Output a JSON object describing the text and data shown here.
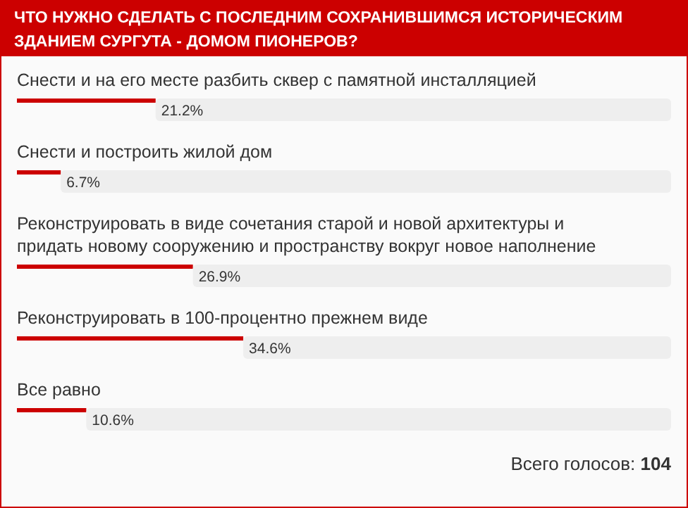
{
  "chart_data": {
    "type": "bar",
    "orientation": "horizontal",
    "stacked": true,
    "title": "ЧТО НУЖНО СДЕЛАТЬ С ПОСЛЕДНИМ СОХРАНИВШИМСЯ ИСТОРИЧЕСКИМ ЗДАНИЕМ СУРГУТА - ДОМОМ ПИОНЕРОВ?",
    "categories": [
      "Снести и на его месте разбить сквер с памятной инсталляцией",
      "Снести и построить жилой дом",
      "Реконструировать в виде сочетания старой и новой архитектуры и придать новому сооружению и пространству вокруг новое наполнение",
      "Реконструировать в 100-процентно прежнем виде",
      "Все равно"
    ],
    "series": [
      {
        "color": "#cc0000",
        "values": [
          21.2,
          6.7,
          26.9,
          34.6,
          10.6
        ],
        "value_labels": [
          "21.2%",
          "6.7%",
          "26.9%",
          "34.6%",
          "10.6%"
        ]
      },
      {
        "color": "#eeeeee",
        "values": [
          78.8,
          93.3,
          73.1,
          65.4,
          89.4
        ]
      }
    ],
    "xlim": [
      0,
      100
    ],
    "annotations": [
      "Всего голосов: 104"
    ]
  }
}
